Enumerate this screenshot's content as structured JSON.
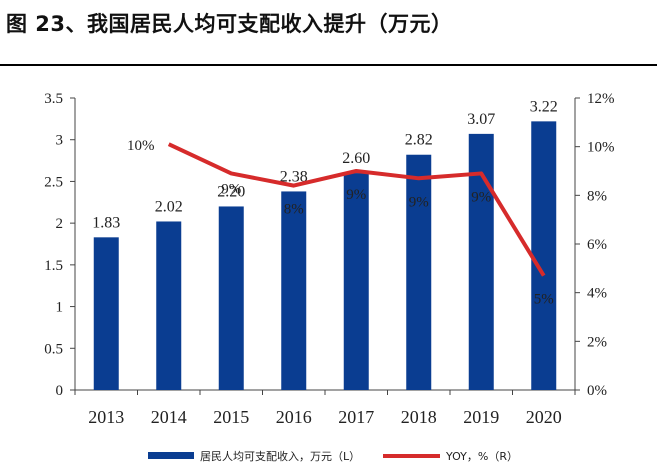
{
  "title": "图 23、我国居民人均可支配收入提升（万元）",
  "chart_data": {
    "type": "bar",
    "categories": [
      "2013",
      "2014",
      "2015",
      "2016",
      "2017",
      "2018",
      "2019",
      "2020"
    ],
    "series": [
      {
        "name": "居民人均可支配收入，万元（L）",
        "type": "bar",
        "axis": "left",
        "color": "#0a3d91",
        "values": [
          1.83,
          2.02,
          2.2,
          2.38,
          2.6,
          2.82,
          3.07,
          3.22
        ],
        "labels": [
          "1.83",
          "2.02",
          "2.20",
          "2.38",
          "2.60",
          "2.82",
          "3.07",
          "3.22"
        ]
      },
      {
        "name": "YOY，%（R）",
        "type": "line",
        "axis": "right",
        "color": "#d62b2b",
        "values": [
          null,
          10.1,
          8.9,
          8.4,
          9.0,
          8.7,
          8.9,
          4.7
        ],
        "labels": [
          "",
          "10%",
          "9%",
          "8%",
          "9%",
          "9%",
          "9%",
          "5%"
        ]
      }
    ],
    "y_left": {
      "lim": [
        0,
        3.5
      ],
      "ticks": [
        "0",
        "0.5",
        "1",
        "1.5",
        "2",
        "2.5",
        "3",
        "3.5"
      ]
    },
    "y_right": {
      "lim": [
        0,
        12
      ],
      "ticks": [
        "0%",
        "2%",
        "4%",
        "6%",
        "8%",
        "10%",
        "12%"
      ]
    },
    "grid": false,
    "legend_position": "bottom"
  }
}
